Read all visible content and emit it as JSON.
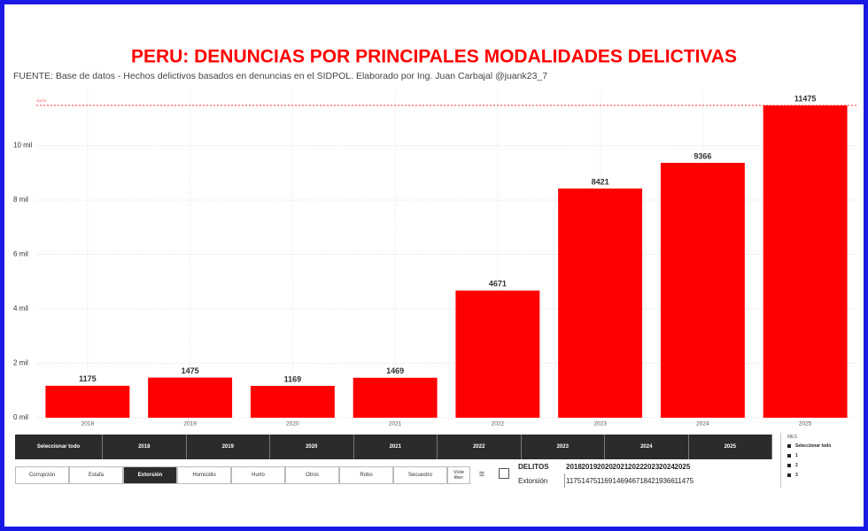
{
  "chart_data": {
    "type": "bar",
    "title": "PERU: DENUNCIAS POR PRINCIPALES MODALIDADES DELICTIVAS",
    "subtitle": "FUENTE: Base de datos - Hechos delictivos basados en denuncias en el SIDPOL. Elaborado por Ing. Juan Carbajal @juank23_7",
    "categories": [
      "2018",
      "2019",
      "2020",
      "2021",
      "2022",
      "2023",
      "2024",
      "2025"
    ],
    "values": [
      1175,
      1475,
      1169,
      1469,
      4671,
      8421,
      9366,
      11475
    ],
    "color": "#ff0000",
    "ylim": [
      0,
      12000
    ],
    "yticks": [
      {
        "value": 0,
        "label": "0 mil"
      },
      {
        "value": 2000,
        "label": "2 mil"
      },
      {
        "value": 4000,
        "label": "4 mil"
      },
      {
        "value": 6000,
        "label": "6 mil"
      },
      {
        "value": 8000,
        "label": "8 mil"
      },
      {
        "value": 10000,
        "label": "10 mil"
      }
    ],
    "grid": true,
    "reference_line": {
      "value": 11475,
      "label": "11475"
    }
  },
  "year_slicer": {
    "items": [
      "Seleccionar todo",
      "2018",
      "2019",
      "2020",
      "2021",
      "2022",
      "2023",
      "2024",
      "2025"
    ]
  },
  "category_slicer": {
    "items": [
      "Corrupción",
      "Estafa",
      "Extorsión",
      "Homicidio",
      "Hurto",
      "Otros",
      "Robo",
      "Secuestro",
      "Viole liber"
    ],
    "selected_index": 2
  },
  "table": {
    "header": [
      "DELITOS",
      "2018",
      "2019",
      "2020",
      "2021",
      "2022",
      "2023",
      "2024",
      "2025"
    ],
    "rows": [
      [
        "Extorsión",
        "1175",
        "1475",
        "1169",
        "1469",
        "4671",
        "8421",
        "9366",
        "11475"
      ]
    ]
  },
  "month_slicer": {
    "title": "MES",
    "items": [
      "Seleccionar todo",
      "1",
      "2",
      "3"
    ]
  }
}
